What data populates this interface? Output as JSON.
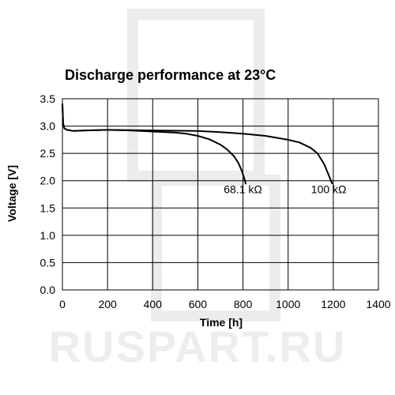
{
  "watermark": {
    "text": "RUSPART.RU"
  },
  "chart_data": {
    "type": "line",
    "title": "Discharge performance at 23°C",
    "xlabel": "Time [h]",
    "ylabel": "Voltage [V]",
    "xlim": [
      0,
      1400
    ],
    "ylim": [
      0,
      3.5
    ],
    "xticks": [
      0,
      200,
      400,
      600,
      800,
      1000,
      1200,
      1400
    ],
    "yticks": [
      "0.0",
      "0.5",
      "1.0",
      "1.5",
      "2.0",
      "2.5",
      "3.0",
      "3.5"
    ],
    "grid": true,
    "series": [
      {
        "name": "68.1 kΩ",
        "x": [
          0,
          3,
          8,
          20,
          50,
          100,
          200,
          300,
          400,
          500,
          550,
          600,
          650,
          700,
          730,
          760,
          780,
          795,
          805,
          812
        ],
        "y": [
          3.4,
          3.05,
          2.96,
          2.93,
          2.91,
          2.92,
          2.93,
          2.92,
          2.9,
          2.88,
          2.86,
          2.82,
          2.76,
          2.66,
          2.57,
          2.45,
          2.32,
          2.18,
          2.05,
          1.95
        ]
      },
      {
        "name": "100 kΩ",
        "x": [
          0,
          3,
          8,
          20,
          50,
          100,
          200,
          400,
          600,
          700,
          800,
          900,
          1000,
          1050,
          1100,
          1130,
          1160,
          1180,
          1195
        ],
        "y": [
          3.4,
          3.05,
          2.96,
          2.93,
          2.91,
          2.92,
          2.93,
          2.92,
          2.91,
          2.89,
          2.86,
          2.82,
          2.75,
          2.7,
          2.6,
          2.5,
          2.3,
          2.1,
          1.95
        ]
      }
    ],
    "annotations": [
      {
        "text": "68.1 kΩ",
        "x": 800,
        "y": 1.77
      },
      {
        "text": "100 kΩ",
        "x": 1180,
        "y": 1.77
      }
    ]
  }
}
